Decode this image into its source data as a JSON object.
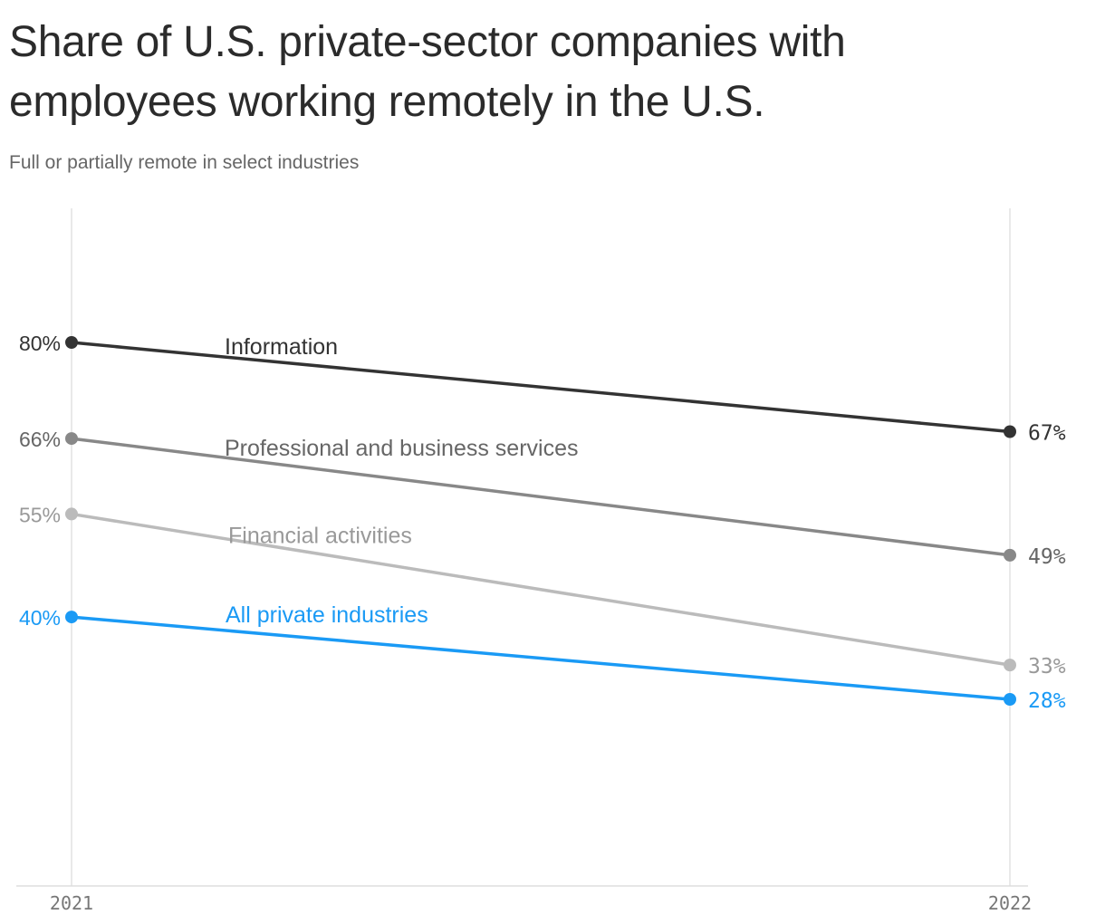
{
  "chart_data": {
    "type": "line",
    "title": "Share of U.S. private-sector companies with employees working remotely in the U.S.",
    "subtitle": "Full or partially remote in select industries",
    "x": [
      "2021",
      "2022"
    ],
    "ylim": [
      0,
      100
    ],
    "grid": false,
    "series": [
      {
        "name": "Information",
        "values": [
          80,
          67
        ],
        "start_label": "80%",
        "end_label": "67%",
        "color": "#333333",
        "label_color": "#333333"
      },
      {
        "name": "Professional and business services",
        "values": [
          66,
          49
        ],
        "start_label": "66%",
        "end_label": "49%",
        "color": "#888888",
        "label_color": "#666666"
      },
      {
        "name": "Financial activities",
        "values": [
          55,
          33
        ],
        "start_label": "55%",
        "end_label": "33%",
        "color": "#bbbbbb",
        "label_color": "#999999"
      },
      {
        "name": "All private industries",
        "values": [
          40,
          28
        ],
        "start_label": "40%",
        "end_label": "28%",
        "color": "#1a9af5",
        "label_color": "#1a9af5"
      }
    ]
  }
}
